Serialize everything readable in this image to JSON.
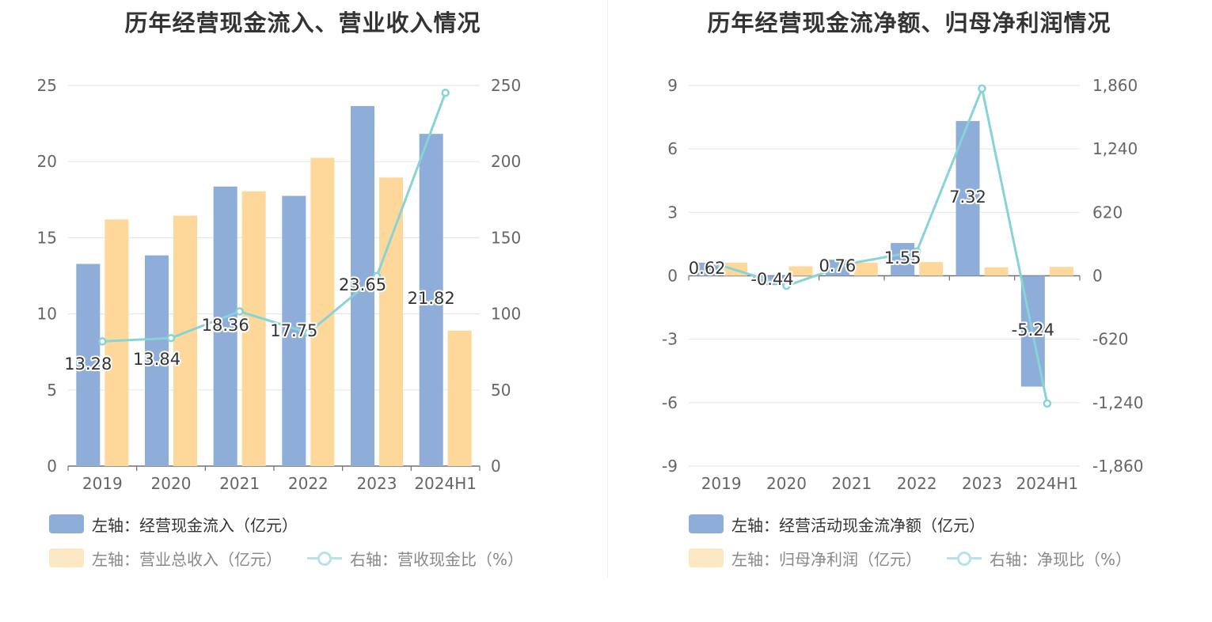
{
  "chart_data": [
    {
      "type": "bar",
      "title": "历年经营现金流入、营业收入情况",
      "categories": [
        "2019",
        "2020",
        "2021",
        "2022",
        "2023",
        "2024H1"
      ],
      "y_left": {
        "ticks": [
          "0",
          "5",
          "10",
          "15",
          "20",
          "25"
        ],
        "range": [
          0,
          25
        ]
      },
      "y_right": {
        "ticks": [
          "0",
          "50",
          "100",
          "150",
          "200",
          "250"
        ],
        "range": [
          0,
          250
        ]
      },
      "series": [
        {
          "name": "左轴：经营现金流入（亿元）",
          "type": "bar",
          "axis": "left",
          "color": "#8eadd9",
          "values": [
            13.28,
            13.84,
            18.36,
            17.75,
            23.65,
            21.82
          ],
          "labels": [
            "13.28",
            "13.84",
            "18.36",
            "17.75",
            "23.65",
            "21.82"
          ]
        },
        {
          "name": "左轴：营业总收入（亿元）",
          "type": "bar",
          "axis": "left",
          "color": "#fed89a",
          "values": [
            16.2,
            16.45,
            18.05,
            20.25,
            18.95,
            8.9
          ]
        },
        {
          "name": "右轴：营收现金比（%）",
          "type": "line",
          "axis": "right",
          "color": "#88d3d6",
          "values": [
            81.9,
            84.1,
            101.6,
            87.5,
            124.8,
            245.2
          ]
        }
      ],
      "legend_position": "bottom",
      "grid": true
    },
    {
      "type": "bar",
      "title": "历年经营现金流净额、归母净利润情况",
      "categories": [
        "2019",
        "2020",
        "2021",
        "2022",
        "2023",
        "2024H1"
      ],
      "y_left": {
        "ticks": [
          "-9",
          "-6",
          "-3",
          "0",
          "3",
          "6",
          "9"
        ],
        "range": [
          -9,
          9
        ]
      },
      "y_right": {
        "ticks": [
          "-1,860",
          "-1,240",
          "-620",
          "0",
          "620",
          "1,240",
          "1,860"
        ],
        "range": [
          -1860,
          1860
        ]
      },
      "series": [
        {
          "name": "左轴：经营活动现金流净额（亿元）",
          "type": "bar",
          "axis": "left",
          "color": "#8eadd9",
          "values": [
            0.62,
            -0.44,
            0.76,
            1.55,
            7.32,
            -5.24
          ],
          "labels": [
            "0.62",
            "-0.44",
            "0.76",
            "1.55",
            "7.32",
            "-5.24"
          ]
        },
        {
          "name": "左轴：归母净利润（亿元）",
          "type": "bar",
          "axis": "left",
          "color": "#fed89a",
          "values": [
            0.62,
            0.45,
            0.62,
            0.65,
            0.4,
            0.42
          ]
        },
        {
          "name": "右轴：净现比（%）",
          "type": "line",
          "axis": "right",
          "color": "#88d3d6",
          "values": [
            100,
            -98,
            123,
            238,
            1830,
            -1248
          ]
        }
      ],
      "legend_position": "bottom",
      "grid": true
    }
  ]
}
